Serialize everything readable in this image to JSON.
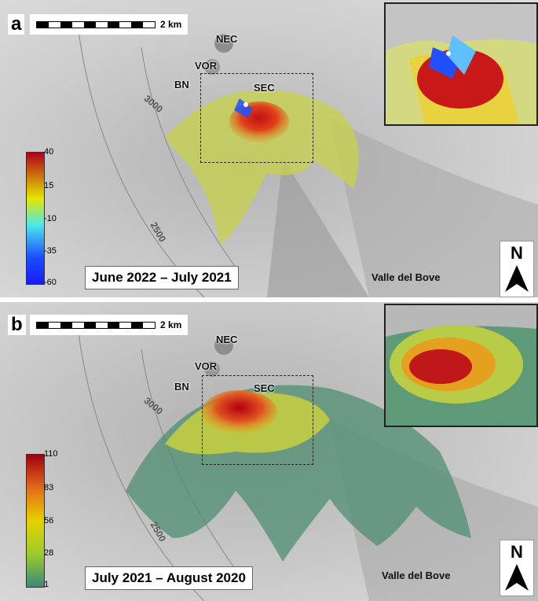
{
  "panels": [
    {
      "letter": "a",
      "scale_label": "2 km",
      "places": {
        "nec": "NEC",
        "vor": "VOR",
        "bn": "BN",
        "sec": "SEC"
      },
      "contours": {
        "c3000": "3000",
        "c2500": "2500"
      },
      "period": "June 2022 – July 2021",
      "valle": "Valle del Bove",
      "north": "N",
      "colorbar_ticks": [
        "40",
        "15",
        "-10",
        "-35",
        "-60"
      ],
      "colorbar_colors": [
        "#b0001a",
        "#e5e600",
        "#4ee8e8",
        "#1a4dff",
        "#1a1aff"
      ]
    },
    {
      "letter": "b",
      "scale_label": "2 km",
      "places": {
        "nec": "NEC",
        "vor": "VOR",
        "bn": "BN",
        "sec": "SEC"
      },
      "contours": {
        "c3000": "3000",
        "c2500": "2500"
      },
      "period": "July 2021 – August 2020",
      "valle": "Valle del Bove",
      "north": "N",
      "colorbar_ticks": [
        "110",
        "83",
        "56",
        "28",
        "1"
      ],
      "colorbar_colors": [
        "#a00010",
        "#e36a1a",
        "#e5d200",
        "#9ccc2c",
        "#3a8a7a"
      ]
    }
  ]
}
